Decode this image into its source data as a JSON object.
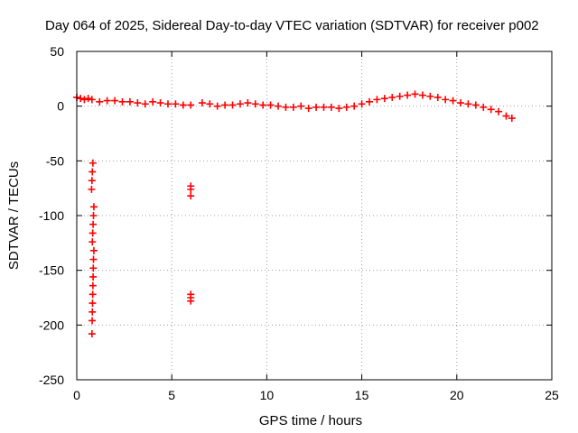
{
  "chart_data": {
    "type": "scatter",
    "title": "Day 064 of 2025, Sidereal Day-to-day VTEC variation (SDTVAR) for receiver p002",
    "xlabel": "GPS time / hours",
    "ylabel": "SDTVAR / TECUs",
    "xlim": [
      0,
      25
    ],
    "ylim": [
      -250,
      50
    ],
    "xticks": [
      0,
      5,
      10,
      15,
      20,
      25
    ],
    "yticks": [
      50,
      0,
      -50,
      -100,
      -150,
      -200,
      -250
    ],
    "xtick_labels": [
      "0",
      "5",
      "10",
      "15",
      "20",
      "25"
    ],
    "ytick_labels": [
      "50",
      "0",
      "-50",
      "-100",
      "-150",
      "-200",
      "-250"
    ],
    "grid": true,
    "marker": "+",
    "color": "#ff0000",
    "series": [
      {
        "name": "SDTVAR",
        "points": [
          [
            0.0,
            8
          ],
          [
            0.2,
            7
          ],
          [
            0.4,
            6
          ],
          [
            0.6,
            7
          ],
          [
            0.8,
            6
          ],
          [
            1.2,
            4
          ],
          [
            1.6,
            5
          ],
          [
            2.0,
            5
          ],
          [
            2.4,
            4
          ],
          [
            2.8,
            4
          ],
          [
            3.2,
            3
          ],
          [
            3.6,
            2
          ],
          [
            4.0,
            4
          ],
          [
            4.4,
            3
          ],
          [
            4.8,
            2
          ],
          [
            5.2,
            2
          ],
          [
            5.6,
            1
          ],
          [
            6.0,
            1
          ],
          [
            6.6,
            3
          ],
          [
            7.0,
            2
          ],
          [
            7.4,
            0
          ],
          [
            7.8,
            1
          ],
          [
            8.2,
            1
          ],
          [
            8.6,
            2
          ],
          [
            9.0,
            3
          ],
          [
            9.4,
            2
          ],
          [
            9.8,
            1
          ],
          [
            10.2,
            1
          ],
          [
            10.6,
            0
          ],
          [
            11.0,
            -1
          ],
          [
            11.4,
            -1
          ],
          [
            11.8,
            0
          ],
          [
            12.2,
            -2
          ],
          [
            12.6,
            -1
          ],
          [
            13.0,
            -1
          ],
          [
            13.4,
            -1
          ],
          [
            13.8,
            -2
          ],
          [
            14.2,
            -1
          ],
          [
            14.6,
            0
          ],
          [
            15.0,
            2
          ],
          [
            15.4,
            4
          ],
          [
            15.8,
            6
          ],
          [
            16.2,
            7
          ],
          [
            16.6,
            8
          ],
          [
            17.0,
            9
          ],
          [
            17.4,
            10
          ],
          [
            17.8,
            11
          ],
          [
            18.2,
            10
          ],
          [
            18.6,
            9
          ],
          [
            19.0,
            8
          ],
          [
            19.4,
            6
          ],
          [
            19.8,
            5
          ],
          [
            20.2,
            3
          ],
          [
            20.6,
            2
          ],
          [
            21.0,
            1
          ],
          [
            21.4,
            -1
          ],
          [
            21.8,
            -3
          ],
          [
            22.2,
            -5
          ],
          [
            22.6,
            -9
          ],
          [
            22.9,
            -11
          ],
          [
            0.85,
            -52
          ],
          [
            0.82,
            -60
          ],
          [
            0.8,
            -68
          ],
          [
            0.78,
            -76
          ],
          [
            0.9,
            -92
          ],
          [
            0.88,
            -100
          ],
          [
            0.86,
            -108
          ],
          [
            0.84,
            -116
          ],
          [
            0.82,
            -124
          ],
          [
            0.9,
            -132
          ],
          [
            0.88,
            -140
          ],
          [
            0.87,
            -148
          ],
          [
            0.86,
            -156
          ],
          [
            0.85,
            -164
          ],
          [
            0.84,
            -172
          ],
          [
            0.83,
            -180
          ],
          [
            0.82,
            -188
          ],
          [
            0.81,
            -196
          ],
          [
            0.8,
            -208
          ],
          [
            6.0,
            -73
          ],
          [
            6.0,
            -76
          ],
          [
            6.0,
            -82
          ],
          [
            6.0,
            -172
          ],
          [
            6.0,
            -175
          ],
          [
            6.0,
            -178
          ]
        ]
      }
    ]
  }
}
